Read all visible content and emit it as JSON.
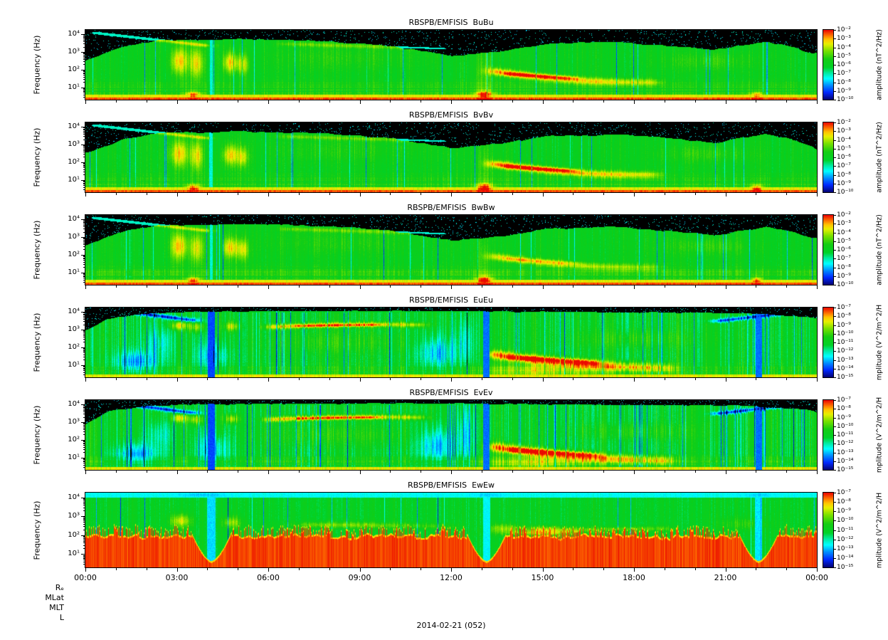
{
  "figure": {
    "date_label": "2014-02-21 (052)",
    "background": "#ffffff",
    "time_range": [
      "00:00",
      "24:00"
    ]
  },
  "x_axis": {
    "tick_labels": [
      "00:00",
      "03:00",
      "06:00",
      "09:00",
      "12:00",
      "15:00",
      "18:00",
      "21:00",
      "00:00"
    ],
    "tick_hours": [
      0,
      3,
      6,
      9,
      12,
      15,
      18,
      21,
      24
    ]
  },
  "orbit_rows": [
    "Rₑ",
    "MLat",
    "MLT",
    "L"
  ],
  "chart_data": [
    {
      "type": "heatmap",
      "title": "RBSPB/EMFISIS  BuBu",
      "ylabel": "Frequency (Hz)",
      "y_scale": "log",
      "y_range_log10": [
        0.3,
        4.25
      ],
      "y_tick_values": [
        10000,
        1000,
        100,
        10
      ],
      "y_tick_labels": [
        "10⁴",
        "10³",
        "10²",
        "10¹"
      ],
      "colorbar": {
        "label": "amplitude (nT^2/Hz)",
        "tick_labels": [
          "10⁻²",
          "10⁻³",
          "10⁻⁴",
          "10⁻⁵",
          "10⁻⁶",
          "10⁻⁷",
          "10⁻⁸",
          "10⁻⁹",
          "10⁻¹⁰"
        ],
        "range_log10": [
          -2,
          -10
        ]
      },
      "description": "Green broadband 3 Hz–2 kHz; black above ~2 kHz with cyan bursts; yellow bursts 02:30–05:15 near 30–1000 Hz; orange-red rising band 13:30–18:30 near 10–200 Hz; red line below 5 Hz with bursts near 03:30, 13:00, 22:00."
    },
    {
      "type": "heatmap",
      "title": "RBSPB/EMFISIS  BvBv",
      "ylabel": "Frequency (Hz)",
      "y_scale": "log",
      "y_range_log10": [
        0.3,
        4.25
      ],
      "y_tick_values": [
        10000,
        1000,
        100,
        10
      ],
      "y_tick_labels": [
        "10⁴",
        "10³",
        "10²",
        "10¹"
      ],
      "colorbar": {
        "label": "amplitude (nT^2/Hz)",
        "tick_labels": [
          "10⁻²",
          "10⁻³",
          "10⁻⁴",
          "10⁻⁵",
          "10⁻⁶",
          "10⁻⁷",
          "10⁻⁸",
          "10⁻⁹",
          "10⁻¹⁰"
        ],
        "range_log10": [
          -2,
          -10
        ]
      },
      "description": "Same morphology as BuBu; slightly stronger orange-red band 13:30–18:30."
    },
    {
      "type": "heatmap",
      "title": "RBSPB/EMFISIS  BwBw",
      "ylabel": "Frequency (Hz)",
      "y_scale": "log",
      "y_range_log10": [
        0.3,
        4.25
      ],
      "y_tick_values": [
        10000,
        1000,
        100,
        10
      ],
      "y_tick_labels": [
        "10⁴",
        "10³",
        "10²",
        "10¹"
      ],
      "colorbar": {
        "label": "amplitude (nT^2/Hz)",
        "tick_labels": [
          "10⁻²",
          "10⁻³",
          "10⁻⁴",
          "10⁻⁵",
          "10⁻⁶",
          "10⁻⁷",
          "10⁻⁸",
          "10⁻⁹",
          "10⁻¹⁰"
        ],
        "range_log10": [
          -2,
          -10
        ]
      },
      "description": "Same morphology as BuBu with weaker, more diffuse 13:30–18:30 enhancement."
    },
    {
      "type": "heatmap",
      "title": "RBSPB/EMFISIS  EuEu",
      "ylabel": "Frequency (Hz)",
      "y_scale": "log",
      "y_range_log10": [
        0.3,
        4.25
      ],
      "y_tick_values": [
        10000,
        1000,
        100,
        10
      ],
      "y_tick_labels": [
        "10⁴",
        "10³",
        "10²",
        "10¹"
      ],
      "colorbar": {
        "label": "mplitude (V^2/m^2/H",
        "tick_labels": [
          "10⁻⁷",
          "10⁻⁸",
          "10⁻⁹",
          "10⁻¹⁰",
          "10⁻¹¹",
          "10⁻¹²",
          "10⁻¹³",
          "10⁻¹⁴",
          "10⁻¹⁵"
        ],
        "range_log10": [
          -7,
          -15
        ]
      },
      "description": "Green/cyan vertically striped background; yellow-orange band 06:00–10:30 near 1–3 kHz; intense red patch 13:30–18:30 below 200 Hz; yellow band at lowest frequencies; blue data gaps near 04:10, 13:05, 22:05."
    },
    {
      "type": "heatmap",
      "title": "RBSPB/EMFISIS  EvEv",
      "ylabel": "Frequency (Hz)",
      "y_scale": "log",
      "y_range_log10": [
        0.3,
        4.25
      ],
      "y_tick_values": [
        10000,
        1000,
        100,
        10
      ],
      "y_tick_labels": [
        "10⁴",
        "10³",
        "10²",
        "10¹"
      ],
      "colorbar": {
        "label": "mplitude (V^2/m^2/H",
        "tick_labels": [
          "10⁻⁷",
          "10⁻⁸",
          "10⁻⁹",
          "10⁻¹⁰",
          "10⁻¹¹",
          "10⁻¹²",
          "10⁻¹³",
          "10⁻¹⁴",
          "10⁻¹⁵"
        ],
        "range_log10": [
          -7,
          -15
        ]
      },
      "description": "Same morphology as EuEu."
    },
    {
      "type": "heatmap",
      "title": "RBSPB/EMFISIS  EwEw",
      "ylabel": "Frequency (Hz)",
      "y_scale": "log",
      "y_range_log10": [
        0.3,
        4.25
      ],
      "y_tick_values": [
        10000,
        1000,
        100,
        10
      ],
      "y_tick_labels": [
        "10⁴",
        "10³",
        "10²",
        "10¹"
      ],
      "colorbar": {
        "label": "mplitude (V^2/m^2/H",
        "tick_labels": [
          "10⁻⁷",
          "10⁻⁸",
          "10⁻⁹",
          "10⁻¹⁰",
          "10⁻¹¹",
          "10⁻¹²",
          "10⁻¹³",
          "10⁻¹⁴",
          "10⁻¹⁵"
        ],
        "range_log10": [
          -7,
          -15
        ]
      },
      "description": "Saturated red below ~100 Hz all day with comb-like vertical bursts; cyan band near 10 kHz; green in between; gaps near 04:10, 13:05, 22:05."
    }
  ]
}
